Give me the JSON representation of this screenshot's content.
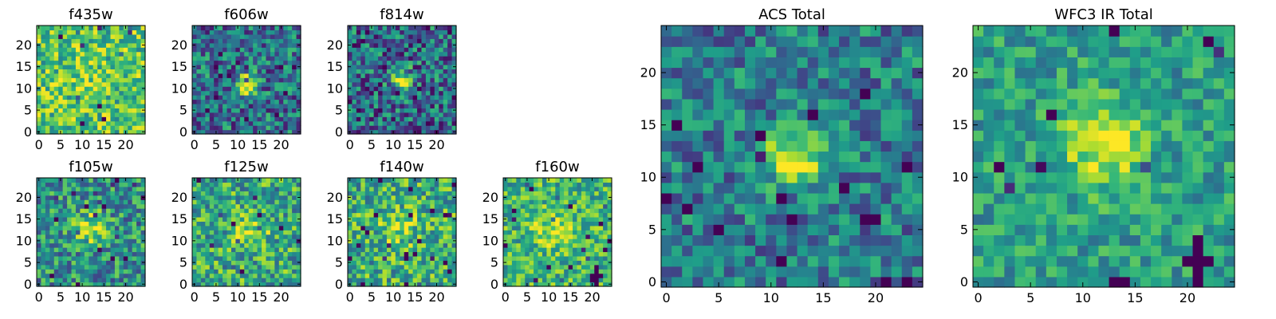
{
  "chart_data": [
    {
      "type": "heatmap",
      "title": "f435w",
      "xlim": [
        0,
        24
      ],
      "ylim": [
        0,
        24
      ],
      "xticks": [
        0,
        5,
        10,
        15,
        20
      ],
      "yticks": [
        0,
        5,
        10,
        15,
        20
      ],
      "pattern": {
        "bg": 0.72,
        "noise": 0.28,
        "peak": 0.08,
        "cx": 12,
        "cy": 12,
        "sigma": 3.0,
        "seed": 11
      }
    },
    {
      "type": "heatmap",
      "title": "f606w",
      "xlim": [
        0,
        24
      ],
      "ylim": [
        0,
        24
      ],
      "xticks": [
        0,
        5,
        10,
        15,
        20
      ],
      "yticks": [
        0,
        5,
        10,
        15,
        20
      ],
      "pattern": {
        "bg": 0.38,
        "noise": 0.32,
        "peak": 0.6,
        "cx": 12,
        "cy": 11,
        "sigma": 1.7,
        "seed": 23
      }
    },
    {
      "type": "heatmap",
      "title": "f814w",
      "xlim": [
        0,
        24
      ],
      "ylim": [
        0,
        24
      ],
      "xticks": [
        0,
        5,
        10,
        15,
        20
      ],
      "yticks": [
        0,
        5,
        10,
        15,
        20
      ],
      "pattern": {
        "bg": 0.35,
        "noise": 0.34,
        "peak": 0.6,
        "cx": 12,
        "cy": 12,
        "sigma": 1.7,
        "seed": 37
      }
    },
    {
      "type": "heatmap",
      "title": "f105w",
      "xlim": [
        0,
        24
      ],
      "ylim": [
        0,
        24
      ],
      "xticks": [
        0,
        5,
        10,
        15,
        20
      ],
      "yticks": [
        0,
        5,
        10,
        15,
        20
      ],
      "pattern": {
        "bg": 0.5,
        "noise": 0.3,
        "peak": 0.4,
        "cx": 12,
        "cy": 13,
        "sigma": 2.6,
        "seed": 41
      }
    },
    {
      "type": "heatmap",
      "title": "f125w",
      "xlim": [
        0,
        24
      ],
      "ylim": [
        0,
        24
      ],
      "xticks": [
        0,
        5,
        10,
        15,
        20
      ],
      "yticks": [
        0,
        5,
        10,
        15,
        20
      ],
      "pattern": {
        "bg": 0.6,
        "noise": 0.3,
        "peak": 0.3,
        "cx": 13,
        "cy": 12,
        "sigma": 2.6,
        "seed": 53
      }
    },
    {
      "type": "heatmap",
      "title": "f140w",
      "xlim": [
        0,
        24
      ],
      "ylim": [
        0,
        24
      ],
      "xticks": [
        0,
        5,
        10,
        15,
        20
      ],
      "yticks": [
        0,
        5,
        10,
        15,
        20
      ],
      "pattern": {
        "bg": 0.62,
        "noise": 0.3,
        "peak": 0.25,
        "cx": 11,
        "cy": 13,
        "sigma": 2.8,
        "seed": 67
      }
    },
    {
      "type": "heatmap",
      "title": "f160w",
      "xlim": [
        0,
        24
      ],
      "ylim": [
        0,
        24
      ],
      "xticks": [
        0,
        5,
        10,
        15,
        20
      ],
      "yticks": [
        0,
        5,
        10,
        15,
        20
      ],
      "pattern": {
        "bg": 0.65,
        "noise": 0.26,
        "peak": 0.25,
        "cx": 11,
        "cy": 13,
        "sigma": 3.0,
        "seed": 71,
        "cross": [
          21,
          2
        ]
      }
    },
    {
      "type": "heatmap",
      "title": "ACS Total",
      "xlim": [
        0,
        24
      ],
      "ylim": [
        0,
        24
      ],
      "xticks": [
        0,
        5,
        10,
        15,
        20
      ],
      "yticks": [
        0,
        5,
        10,
        15,
        20
      ],
      "pattern": {
        "bg": 0.42,
        "noise": 0.26,
        "peak": 0.6,
        "cx": 12,
        "cy": 12,
        "sigma": 1.9,
        "seed": 83
      }
    },
    {
      "type": "heatmap",
      "title": "WFC3 IR Total",
      "xlim": [
        0,
        24
      ],
      "ylim": [
        0,
        24
      ],
      "xticks": [
        0,
        5,
        10,
        15,
        20
      ],
      "yticks": [
        0,
        5,
        10,
        15,
        20
      ],
      "pattern": {
        "bg": 0.55,
        "noise": 0.2,
        "peak": 0.42,
        "cx": 12,
        "cy": 13,
        "sigma": 2.8,
        "seed": 97,
        "cross": [
          21,
          2
        ]
      }
    }
  ]
}
